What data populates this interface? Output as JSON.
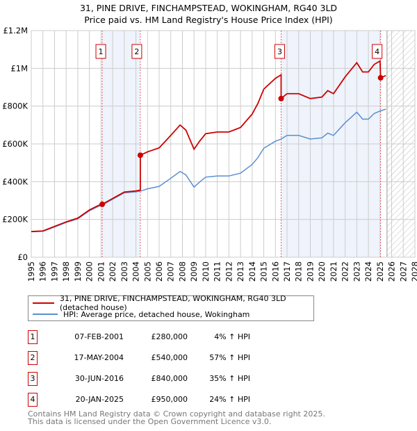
{
  "chart_data": {
    "type": "line",
    "title": "31, PINE DRIVE, FINCHAMPSTEAD, WOKINGHAM, RG40 3LD",
    "subtitle": "Price paid vs. HM Land Registry's House Price Index (HPI)",
    "xlim": [
      1995,
      2028
    ],
    "ylim": [
      0,
      1200000
    ],
    "x_ticks": [
      "1995",
      "1996",
      "1997",
      "1998",
      "1999",
      "2000",
      "2001",
      "2002",
      "2003",
      "2004",
      "2005",
      "2006",
      "2007",
      "2008",
      "2009",
      "2010",
      "2011",
      "2012",
      "2013",
      "2014",
      "2015",
      "2016",
      "2017",
      "2018",
      "2019",
      "2020",
      "2021",
      "2022",
      "2023",
      "2024",
      "2025",
      "2026",
      "2027",
      "2028"
    ],
    "y_ticks": [
      {
        "v": 0,
        "label": "£0"
      },
      {
        "v": 200000,
        "label": "£200K"
      },
      {
        "v": 400000,
        "label": "£400K"
      },
      {
        "v": 600000,
        "label": "£600K"
      },
      {
        "v": 800000,
        "label": "£800K"
      },
      {
        "v": 1000000,
        "label": "£1M"
      },
      {
        "v": 1200000,
        "label": "£1.2M"
      }
    ],
    "grid": true,
    "forecast_from": 2025.6,
    "series": [
      {
        "name": "31, PINE DRIVE, FINCHAMPSTEAD, WOKINGHAM, RG40 3LD (detached house)",
        "color": "#cc0000",
        "x": [
          1995,
          1996,
          1997,
          1998,
          1999,
          2000,
          2000.8,
          2001.1,
          2002,
          2003,
          2004,
          2004.38,
          2004.38,
          2005,
          2006,
          2007,
          2007.8,
          2008.3,
          2009,
          2009.5,
          2010,
          2011,
          2012,
          2013,
          2014,
          2014.5,
          2015,
          2016,
          2016.49,
          2016.49,
          2017,
          2018,
          2019,
          2020,
          2020.5,
          2021,
          2022,
          2023,
          2023.5,
          2024,
          2024.5,
          2025.0,
          2025.05,
          2025.5
        ],
        "y": [
          136000,
          139000,
          163000,
          187000,
          207000,
          250000,
          275000,
          280000,
          311000,
          345000,
          351000,
          355000,
          540000,
          558000,
          579000,
          645000,
          700000,
          673000,
          572000,
          616000,
          654000,
          663000,
          663000,
          687000,
          758000,
          815000,
          890000,
          947000,
          966000,
          840000,
          866000,
          866000,
          840000,
          848000,
          882000,
          866000,
          955000,
          1030000,
          981000,
          981000,
          1021000,
          1039000,
          950000,
          962000
        ]
      },
      {
        "name": "HPI: Average price, detached house, Wokingham",
        "color": "#5b8fd0",
        "x": [
          1995,
          1996,
          1997,
          1998,
          1999,
          2000,
          2000.8,
          2001.1,
          2002,
          2003,
          2004,
          2004.4,
          2005,
          2006,
          2007,
          2007.8,
          2008.3,
          2009,
          2009.5,
          2010,
          2011,
          2012,
          2013,
          2014,
          2014.5,
          2015,
          2016,
          2016.5,
          2017,
          2018,
          2019,
          2020,
          2020.5,
          2021,
          2022,
          2023,
          2023.5,
          2024,
          2024.5,
          2025,
          2025.5
        ],
        "y": [
          135000,
          137000,
          160000,
          184000,
          203000,
          246000,
          270000,
          276000,
          307000,
          341000,
          346000,
          350000,
          362000,
          375000,
          418000,
          454000,
          436000,
          371000,
          399000,
          424000,
          430000,
          430000,
          445000,
          491000,
          528000,
          577000,
          614000,
          626000,
          645000,
          645000,
          626000,
          632000,
          657000,
          645000,
          712000,
          768000,
          731000,
          731000,
          761000,
          774000,
          784000
        ]
      }
    ],
    "sales": [
      {
        "id": "1",
        "x": 2001.1,
        "y": 280000,
        "date": "07-FEB-2001",
        "price": "£280,000",
        "hpi": "4% ↑ HPI"
      },
      {
        "id": "2",
        "x": 2004.38,
        "y": 540000,
        "date": "17-MAY-2004",
        "price": "£540,000",
        "hpi": "57% ↑ HPI"
      },
      {
        "id": "3",
        "x": 2016.49,
        "y": 840000,
        "date": "30-JUN-2016",
        "price": "£840,000",
        "hpi": "35% ↑ HPI"
      },
      {
        "id": "4",
        "x": 2025.05,
        "y": 950000,
        "date": "20-JAN-2025",
        "price": "£950,000",
        "hpi": "24% ↑ HPI"
      }
    ],
    "shaded": [
      [
        2001.1,
        2004.38
      ],
      [
        2016.49,
        2025.05
      ]
    ]
  },
  "legend": {
    "red": "31, PINE DRIVE, FINCHAMPSTEAD, WOKINGHAM, RG40 3LD (detached house)",
    "blue": "HPI: Average price, detached house, Wokingham"
  },
  "footer": {
    "line1": "Contains HM Land Registry data © Crown copyright and database right 2025.",
    "line2": "This data is licensed under the Open Government Licence v3.0."
  }
}
